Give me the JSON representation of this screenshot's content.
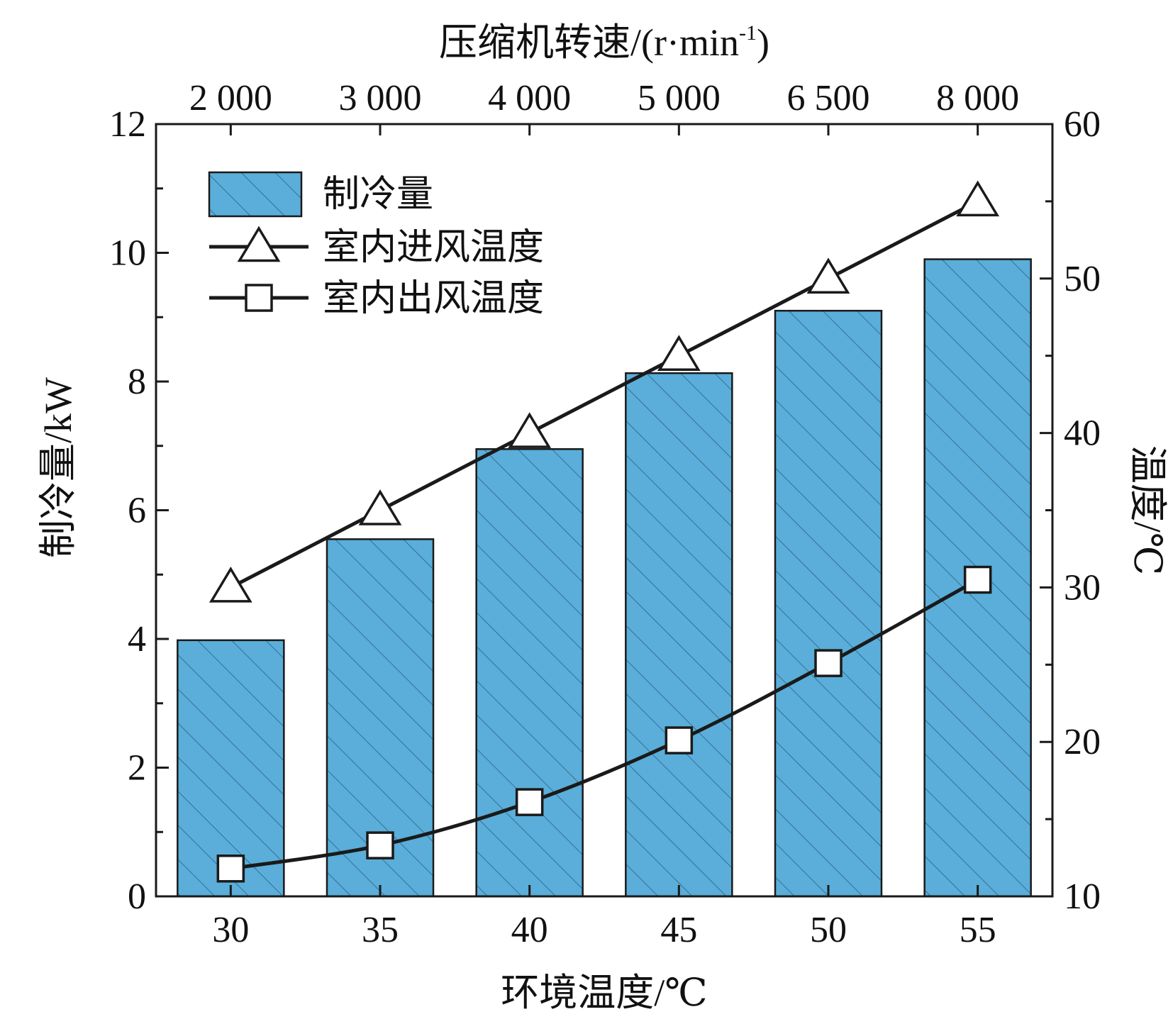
{
  "chart_data": {
    "type": "bar",
    "categories": [
      "30",
      "35",
      "40",
      "45",
      "50",
      "55"
    ],
    "bottom_axis": {
      "label": "环境温度/℃",
      "ticks": [
        "30",
        "35",
        "40",
        "45",
        "50",
        "55"
      ]
    },
    "top_axis": {
      "label_main": "压缩机转速/(r·min",
      "label_sup": "-1",
      "label_close": ")",
      "ticks": [
        "2 000",
        "3 000",
        "4 000",
        "5 000",
        "6 500",
        "8 000"
      ]
    },
    "left_axis": {
      "label": "制冷量/kW",
      "ylim": [
        0,
        12
      ],
      "ticks": [
        "0",
        "2",
        "4",
        "6",
        "8",
        "10",
        "12"
      ]
    },
    "right_axis": {
      "label": "温度/℃",
      "ylim": [
        10,
        60
      ],
      "ticks": [
        "10",
        "20",
        "30",
        "40",
        "50",
        "60"
      ]
    },
    "series": [
      {
        "name": "制冷量",
        "kind": "bar",
        "axis": "left",
        "values": [
          3.98,
          5.55,
          6.95,
          8.13,
          9.1,
          9.9
        ]
      },
      {
        "name": "室内进风温度",
        "kind": "line",
        "marker": "triangle",
        "axis": "right",
        "values": [
          30,
          35,
          40,
          45,
          50,
          55
        ]
      },
      {
        "name": "室内出风温度",
        "kind": "line",
        "marker": "square",
        "axis": "right",
        "values": [
          11.8,
          13.3,
          16.1,
          20.1,
          25.1,
          30.5
        ]
      }
    ],
    "colors": {
      "bar_fill": "#5aaed9",
      "hatch": "#2e5f86",
      "line": "#1a1a1a"
    },
    "grid": false,
    "legend_position": "top-left"
  }
}
